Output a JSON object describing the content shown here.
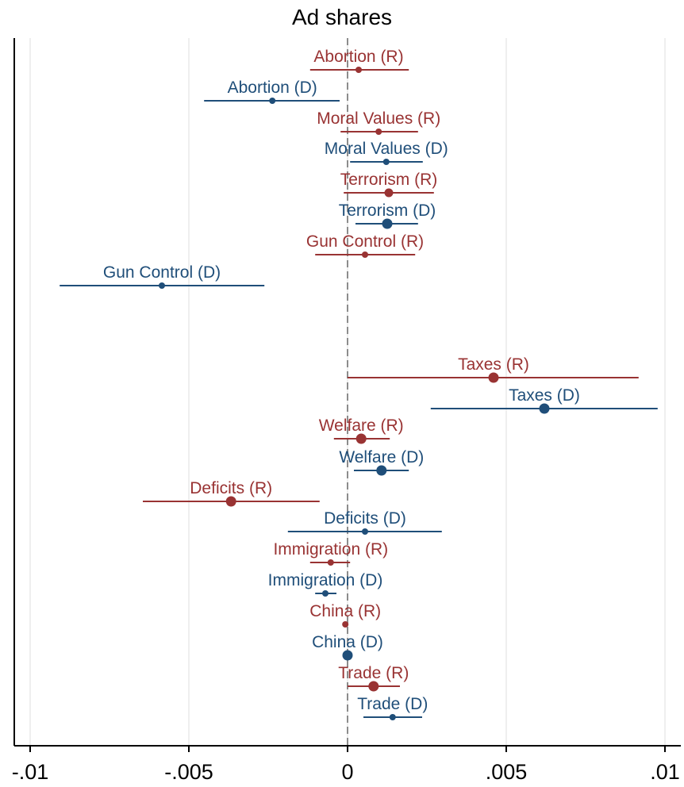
{
  "chart_data": {
    "type": "scatter",
    "title": "Ad shares",
    "xlabel": "",
    "ylabel": "",
    "xlim": [
      -0.0105,
      0.0105
    ],
    "x_ticks": [
      -0.01,
      -0.005,
      0,
      0.005,
      0.01
    ],
    "x_tick_labels": [
      "-.01",
      "-.005",
      "0",
      ".005",
      ".01"
    ],
    "grid": "vertical",
    "reference_line": 0,
    "colors": {
      "R": "#993333",
      "D": "#1f4e79"
    },
    "points": [
      {
        "label": "Abortion (R)",
        "party": "R",
        "estimate": 0.00035,
        "ci_low": -0.00118,
        "ci_high": 0.00193,
        "size": "small"
      },
      {
        "label": "Abortion (D)",
        "party": "D",
        "estimate": -0.00237,
        "ci_low": -0.00452,
        "ci_high": -0.00025,
        "size": "small"
      },
      {
        "label": "Moral Values (R)",
        "party": "R",
        "estimate": 0.00098,
        "ci_low": -0.00022,
        "ci_high": 0.00222,
        "size": "small"
      },
      {
        "label": "Moral Values (D)",
        "party": "D",
        "estimate": 0.00122,
        "ci_low": 8e-05,
        "ci_high": 0.00237,
        "size": "small"
      },
      {
        "label": "Terrorism (R)",
        "party": "R",
        "estimate": 0.0013,
        "ci_low": -0.00012,
        "ci_high": 0.00272,
        "size": "medium"
      },
      {
        "label": "Terrorism (D)",
        "party": "D",
        "estimate": 0.00125,
        "ci_low": 0.00025,
        "ci_high": 0.00222,
        "size": "large"
      },
      {
        "label": "Gun Control (R)",
        "party": "R",
        "estimate": 0.00055,
        "ci_low": -0.00102,
        "ci_high": 0.00213,
        "size": "small"
      },
      {
        "label": "Gun Control (D)",
        "party": "D",
        "estimate": -0.00585,
        "ci_low": -0.00907,
        "ci_high": -0.00262,
        "size": "small"
      },
      {
        "label": "Taxes (R)",
        "party": "R",
        "estimate": 0.0046,
        "ci_low": 0.0,
        "ci_high": 0.00917,
        "size": "large"
      },
      {
        "label": "Taxes (D)",
        "party": "D",
        "estimate": 0.0062,
        "ci_low": 0.00262,
        "ci_high": 0.00977,
        "size": "large"
      },
      {
        "label": "Welfare (R)",
        "party": "R",
        "estimate": 0.00043,
        "ci_low": -0.00043,
        "ci_high": 0.00133,
        "size": "large"
      },
      {
        "label": "Welfare (D)",
        "party": "D",
        "estimate": 0.00107,
        "ci_low": 0.0002,
        "ci_high": 0.00193,
        "size": "large"
      },
      {
        "label": "Deficits (R)",
        "party": "R",
        "estimate": -0.00367,
        "ci_low": -0.00645,
        "ci_high": -0.00088,
        "size": "large"
      },
      {
        "label": "Deficits (D)",
        "party": "D",
        "estimate": 0.00055,
        "ci_low": -0.00188,
        "ci_high": 0.00297,
        "size": "small"
      },
      {
        "label": "Immigration (R)",
        "party": "R",
        "estimate": -0.00053,
        "ci_low": -0.00118,
        "ci_high": 8e-05,
        "size": "small"
      },
      {
        "label": "Immigration (D)",
        "party": "D",
        "estimate": -0.0007,
        "ci_low": -0.00102,
        "ci_high": -0.00035,
        "size": "small"
      },
      {
        "label": "China (R)",
        "party": "R",
        "estimate": -7e-05,
        "ci_low": -7e-05,
        "ci_high": -7e-05,
        "size": "small"
      },
      {
        "label": "China (D)",
        "party": "D",
        "estimate": 0.0,
        "ci_low": 0.0,
        "ci_high": 0.0,
        "size": "large"
      },
      {
        "label": "Trade (R)",
        "party": "R",
        "estimate": 0.00082,
        "ci_low": 0.0,
        "ci_high": 0.00165,
        "size": "large"
      },
      {
        "label": "Trade (D)",
        "party": "D",
        "estimate": 0.00142,
        "ci_low": 0.0005,
        "ci_high": 0.00235,
        "size": "small"
      }
    ]
  }
}
